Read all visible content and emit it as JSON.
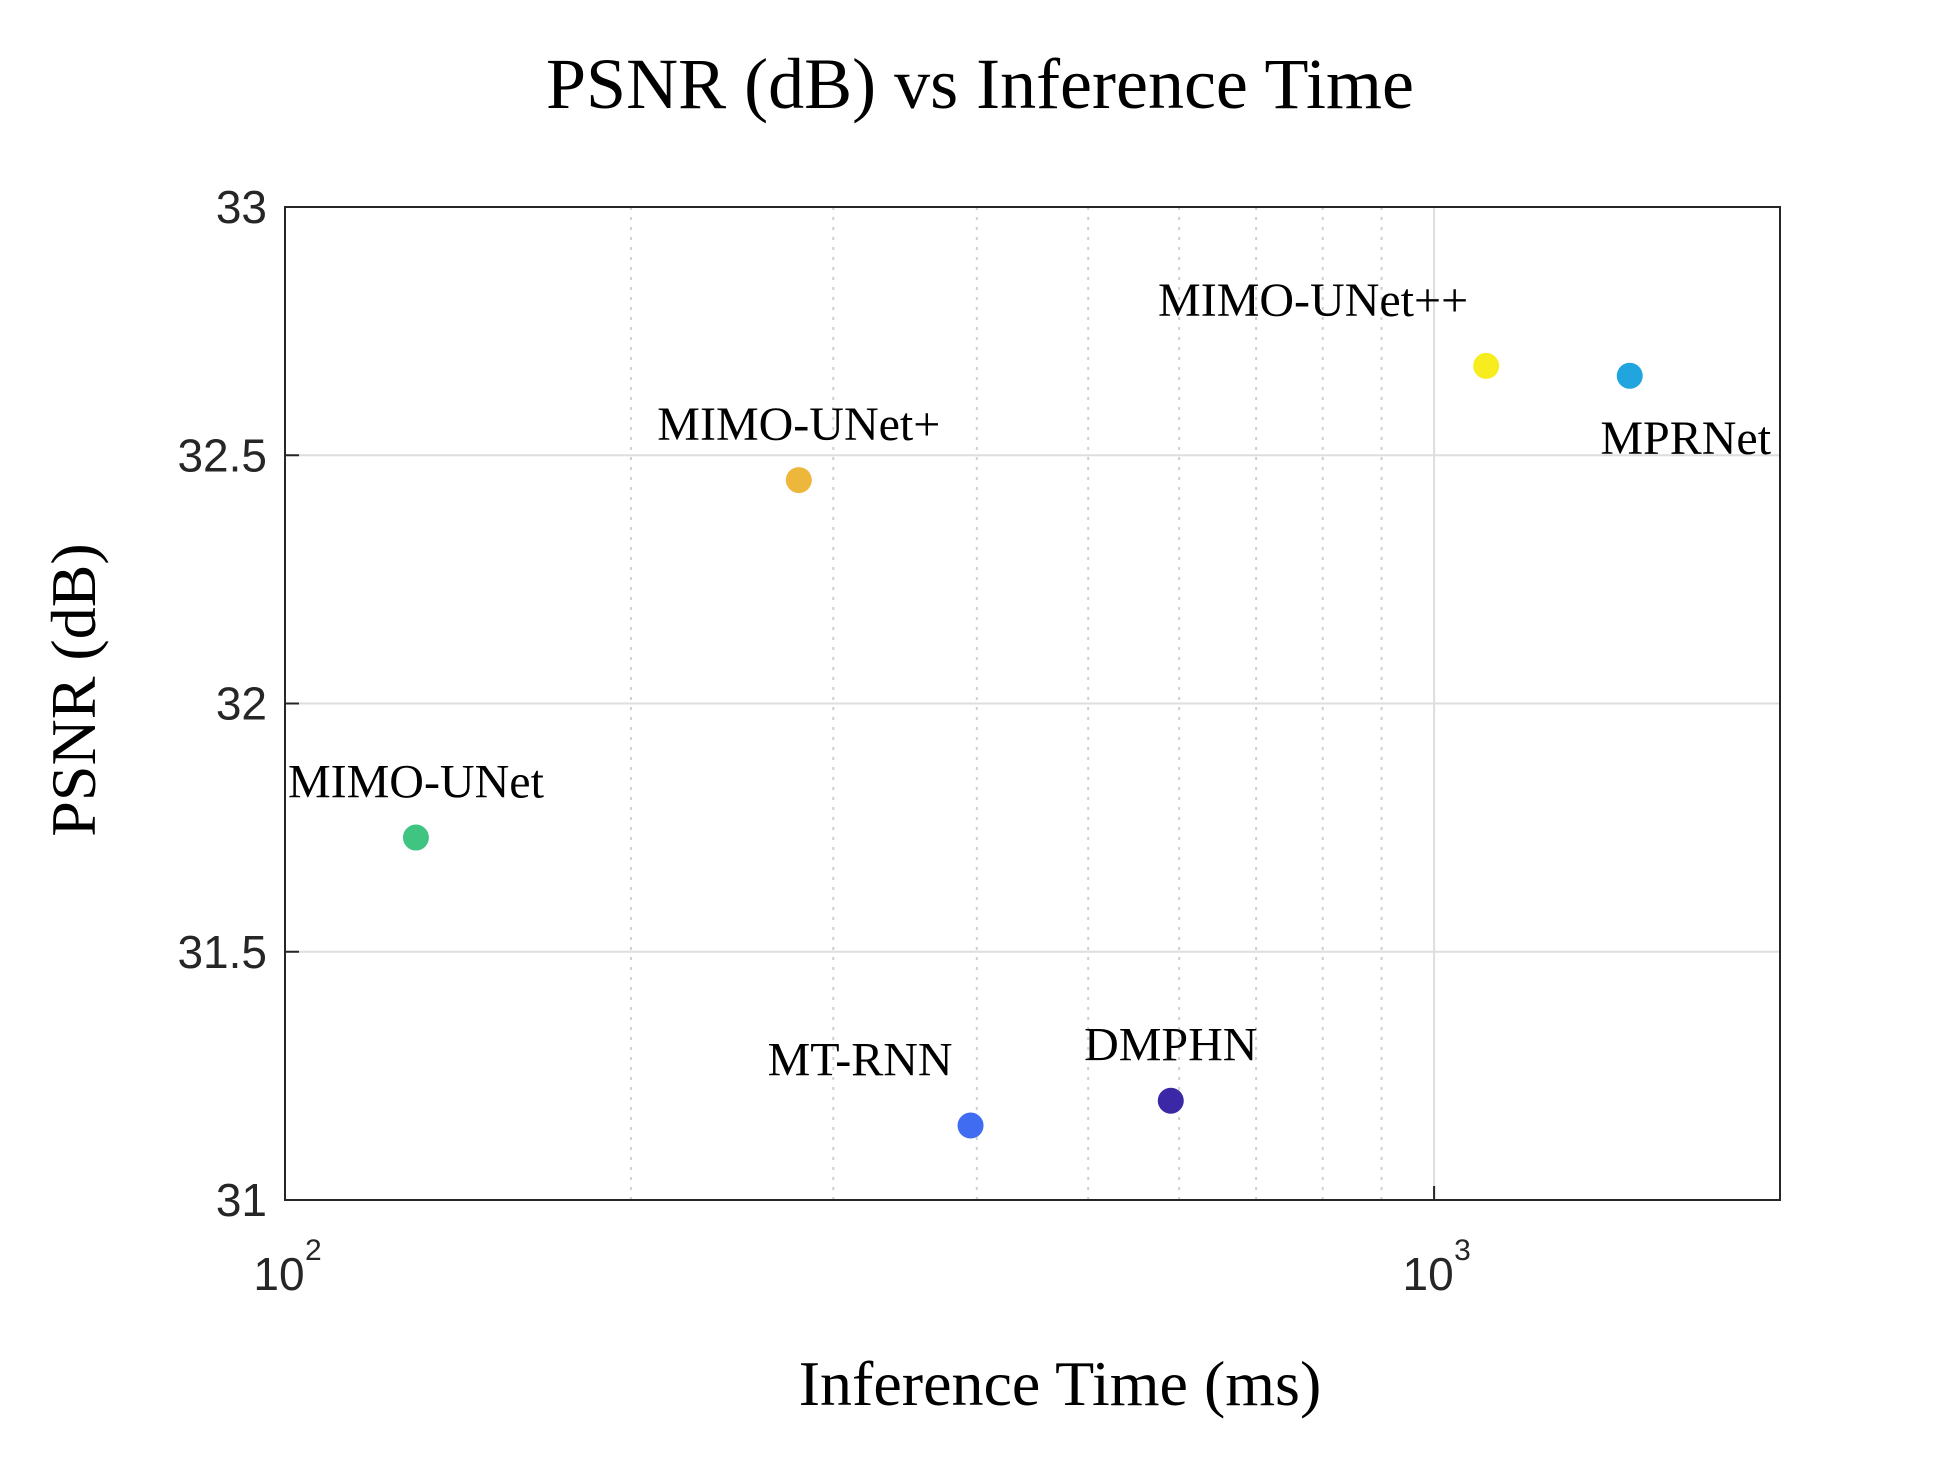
{
  "chart_data": {
    "type": "scatter",
    "title": "PSNR (dB) vs Inference Time",
    "xlabel": "Inference Time (ms)",
    "ylabel": "PSNR (dB)",
    "xscale": "log",
    "xlim": [
      100,
      2000
    ],
    "ylim": [
      31,
      33
    ],
    "grid": true,
    "x_ticks": [
      {
        "base": "10",
        "exp": "2",
        "value": 100
      },
      {
        "base": "10",
        "exp": "3",
        "value": 1000
      }
    ],
    "y_ticks": [
      {
        "label": "31",
        "value": 31
      },
      {
        "label": "31.5",
        "value": 31.5
      },
      {
        "label": "32",
        "value": 32
      },
      {
        "label": "32.5",
        "value": 32.5
      },
      {
        "label": "33",
        "value": 33
      }
    ],
    "points": [
      {
        "label": "MIMO-UNet",
        "x": 130,
        "y": 31.73,
        "color": "#3fc482",
        "label_pos": "above"
      },
      {
        "label": "MIMO-UNet+",
        "x": 280,
        "y": 32.45,
        "color": "#ecb73a",
        "label_pos": "above"
      },
      {
        "label": "MT-RNN",
        "x": 395,
        "y": 31.15,
        "color": "#3f6cf0",
        "label_pos": "above-left"
      },
      {
        "label": "DMPHN",
        "x": 590,
        "y": 31.2,
        "color": "#3a28a6",
        "label_pos": "above"
      },
      {
        "label": "MIMO-UNet++",
        "x": 1110,
        "y": 32.68,
        "color": "#f7ed1e",
        "label_pos": "above-left"
      },
      {
        "label": "MPRNet",
        "x": 1480,
        "y": 32.66,
        "color": "#21a5de",
        "label_pos": "below"
      }
    ]
  }
}
